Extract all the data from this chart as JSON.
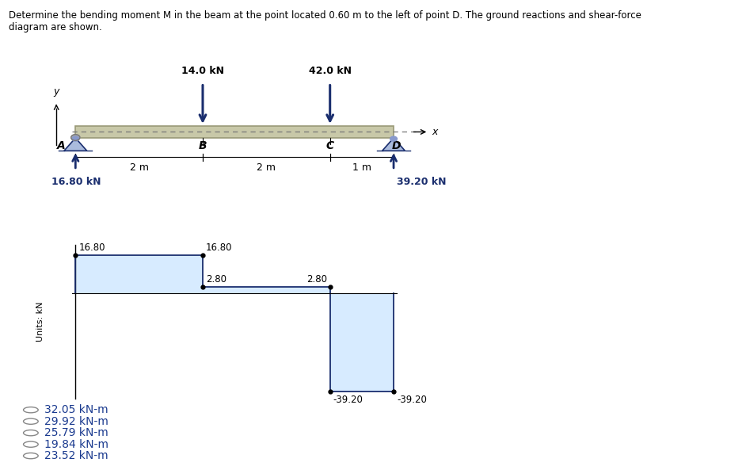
{
  "title_line1": "Determine the bending moment M in the beam at the point located 0.60 m to the left of point D. The ground reactions and shear-force",
  "title_line2": "diagram are shown.",
  "beam_color": "#c8c8a8",
  "beam_outline": "#999977",
  "blue_color": "#1a2e6e",
  "light_blue_fill": "#d0e8ff",
  "reaction_A": "16.80 kN",
  "reaction_D": "39.20 kN",
  "load_B": "14.0 kN",
  "load_C": "42.0 kN",
  "dist_AB": "2 m",
  "dist_BC": "2 m",
  "dist_CD": "1 m",
  "labels": {
    "A": "A",
    "B": "B",
    "C": "C",
    "D": "D",
    "x_axis": "x",
    "y_axis": "y"
  },
  "shear_values": {
    "left_top": "16.80",
    "right_top_B": "16.80",
    "below_B_left": "2.80",
    "below_B_right": "2.80",
    "bottom_C_left": "-39.20",
    "bottom_C_right": "-39.20"
  },
  "units_label": "Units: kN",
  "answer_choices": [
    "32.05 kN-m",
    "29.92 kN-m",
    "25.79 kN-m",
    "19.84 kN-m",
    "23.52 kN-m"
  ],
  "answer_color": "#1a3a8f",
  "background_color": "#ffffff"
}
